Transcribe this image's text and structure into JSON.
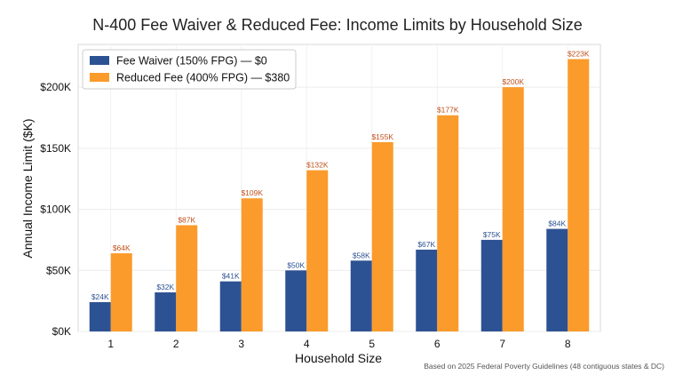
{
  "chart_data": {
    "type": "bar",
    "title": "N-400 Fee Waiver & Reduced Fee: Income Limits by Household Size",
    "xlabel": "Household Size",
    "ylabel": "Annual Income Limit ($K)",
    "categories": [
      "1",
      "2",
      "3",
      "4",
      "5",
      "6",
      "7",
      "8"
    ],
    "series": [
      {
        "name": "Fee Waiver (150% FPG) — $0",
        "color": "#2d5293",
        "label_color": "#2d5293",
        "values": [
          24,
          32,
          41,
          50,
          58,
          67,
          75,
          84
        ],
        "labels": [
          "$24K",
          "$32K",
          "$41K",
          "$50K",
          "$58K",
          "$67K",
          "$75K",
          "$84K"
        ]
      },
      {
        "name": "Reduced Fee (400% FPG) — $380",
        "color": "#fb9b2b",
        "label_color": "#c0501c",
        "values": [
          64,
          87,
          109,
          132,
          155,
          177,
          200,
          223
        ],
        "labels": [
          "$64K",
          "$87K",
          "$109K",
          "$132K",
          "$155K",
          "$177K",
          "$200K",
          "$223K"
        ]
      }
    ],
    "ylim": [
      0,
      235
    ],
    "yticks": [
      0,
      50,
      100,
      150,
      200
    ],
    "ytick_labels": [
      "$0K",
      "$50K",
      "$100K",
      "$150K",
      "$200K"
    ],
    "grid": true,
    "legend": "top-left",
    "footnote": "Based on 2025 Federal Poverty Guidelines (48 contiguous states & DC)"
  }
}
